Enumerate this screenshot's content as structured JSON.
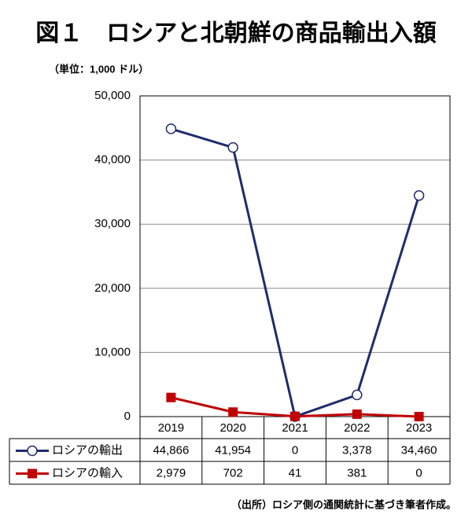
{
  "chart_data": {
    "type": "line",
    "title": "図１　ロシアと北朝鮮の商品輸出入額",
    "unit": "（単位：1,000 ドル）",
    "source": "（出所）ロシア側の通関統計に基づき筆者作成。",
    "categories": [
      "2019",
      "2020",
      "2021",
      "2022",
      "2023"
    ],
    "series": [
      {
        "name": "ロシアの輸出",
        "color": "#1f2d6b",
        "marker": "circle",
        "values": [
          44866,
          41954,
          0,
          3378,
          34460
        ],
        "value_labels": [
          "44,866",
          "41,954",
          "0",
          "3,378",
          "34,460"
        ]
      },
      {
        "name": "ロシアの輸入",
        "color": "#c00000",
        "marker": "square",
        "values": [
          2979,
          702,
          41,
          381,
          0
        ],
        "value_labels": [
          "2,979",
          "702",
          "41",
          "381",
          "0"
        ]
      }
    ],
    "ylim": [
      0,
      50000
    ],
    "yticks": [
      0,
      {
        "value": 10000,
        "label": "10,000"
      },
      {
        "value": 20000,
        "label": "20,000"
      },
      {
        "value": 30000,
        "label": "30,000"
      },
      {
        "value": 40000,
        "label": "40,000"
      },
      {
        "value": 50000,
        "label": "50,000"
      }
    ],
    "grid": true
  }
}
